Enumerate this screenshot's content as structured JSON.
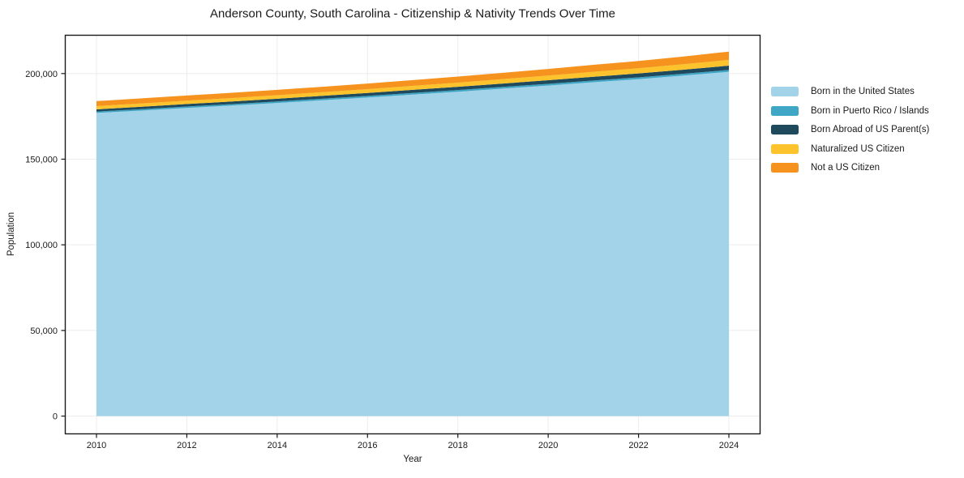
{
  "chart_data": {
    "type": "area",
    "stacked": true,
    "title": "Anderson County, South Carolina - Citizenship & Nativity Trends Over Time",
    "xlabel": "Year",
    "ylabel": "Population",
    "x": [
      2010,
      2011,
      2012,
      2013,
      2014,
      2015,
      2016,
      2017,
      2018,
      2019,
      2020,
      2021,
      2022,
      2023,
      2024
    ],
    "series": [
      {
        "name": "Born in the United States",
        "color": "#a3d3e8",
        "values": [
          177000,
          178400,
          179900,
          181300,
          182800,
          184400,
          186000,
          187700,
          189400,
          191200,
          193000,
          194900,
          196700,
          198800,
          201000
        ]
      },
      {
        "name": "Born in Puerto Rico / Islands",
        "color": "#3fa6c6",
        "values": [
          800,
          820,
          840,
          860,
          880,
          900,
          920,
          940,
          960,
          980,
          1000,
          1020,
          1050,
          1070,
          1100
        ]
      },
      {
        "name": "Born Abroad of US Parent(s)",
        "color": "#1f4a5e",
        "values": [
          1300,
          1380,
          1450,
          1520,
          1600,
          1680,
          1750,
          1830,
          1900,
          2000,
          2100,
          2200,
          2300,
          2400,
          2500
        ]
      },
      {
        "name": "Naturalized US Citizen",
        "color": "#fcc32d",
        "values": [
          1900,
          1950,
          2000,
          2050,
          2100,
          2150,
          2250,
          2350,
          2450,
          2600,
          2750,
          2900,
          3050,
          3200,
          3400
        ]
      },
      {
        "name": "Not a US Citizen",
        "color": "#f6921e",
        "values": [
          2900,
          2950,
          3000,
          3050,
          3100,
          3150,
          3250,
          3350,
          3500,
          3650,
          3850,
          4050,
          4250,
          4500,
          4800
        ]
      }
    ],
    "xticks": [
      2010,
      2012,
      2014,
      2016,
      2018,
      2020,
      2022,
      2024
    ],
    "xtick_labels": [
      "2010",
      "2012",
      "2014",
      "2016",
      "2018",
      "2020",
      "2022",
      "2024"
    ],
    "yticks": [
      0,
      50000,
      100000,
      150000,
      200000
    ],
    "ytick_labels": [
      "0",
      "50,000",
      "100,000",
      "150,000",
      "200,000"
    ],
    "xlim": [
      2009.3,
      2024.7
    ],
    "ylim": [
      -10600,
      222600
    ],
    "grid": true,
    "legend_position": "right"
  },
  "style_colors": {
    "grid": "#ececec",
    "spine": "#1a1a1a",
    "tick": "#1a1a1a",
    "background": "#ffffff"
  }
}
